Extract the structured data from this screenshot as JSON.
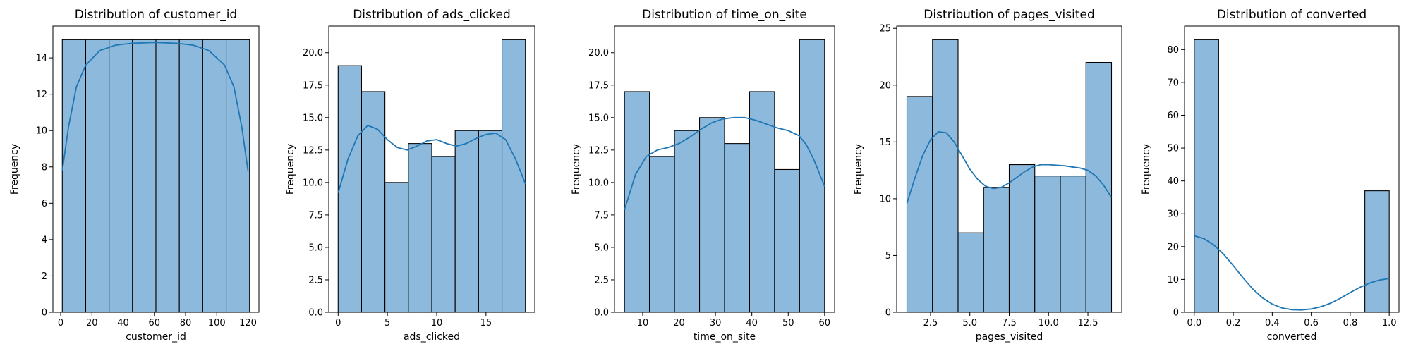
{
  "chart_data": [
    {
      "type": "bar",
      "title": "Distribution of customer_id",
      "xlabel": "customer_id",
      "ylabel": "Frequency",
      "bin_edges": [
        1,
        16,
        31,
        46,
        61,
        76,
        91,
        106,
        121
      ],
      "values": [
        15,
        15,
        15,
        15,
        15,
        15,
        15,
        15
      ],
      "xlim": [
        -5,
        127
      ],
      "ylim": [
        0,
        15.75
      ],
      "xticks": [
        0,
        20,
        40,
        60,
        80,
        100,
        120
      ],
      "xtick_labels": [
        "0",
        "20",
        "40",
        "60",
        "80",
        "100",
        "120"
      ],
      "yticks": [
        0,
        2,
        4,
        6,
        8,
        10,
        12,
        14
      ],
      "ytick_labels": [
        "0",
        "2",
        "4",
        "6",
        "8",
        "10",
        "12",
        "14"
      ],
      "kde": [
        [
          1,
          7.8
        ],
        [
          5,
          10.2
        ],
        [
          10,
          12.4
        ],
        [
          16,
          13.6
        ],
        [
          25,
          14.4
        ],
        [
          35,
          14.7
        ],
        [
          45,
          14.8
        ],
        [
          60,
          14.85
        ],
        [
          75,
          14.8
        ],
        [
          85,
          14.7
        ],
        [
          95,
          14.4
        ],
        [
          105,
          13.6
        ],
        [
          111,
          12.4
        ],
        [
          116,
          10.2
        ],
        [
          120,
          7.8
        ]
      ]
    },
    {
      "type": "bar",
      "title": "Distribution of ads_clicked",
      "xlabel": "ads_clicked",
      "ylabel": "Frequency",
      "bin_edges": [
        0,
        2.375,
        4.75,
        7.125,
        9.5,
        11.875,
        14.25,
        16.625,
        19
      ],
      "values": [
        19,
        17,
        10,
        13,
        12,
        14,
        14,
        21
      ],
      "xlim": [
        -0.95,
        19.95
      ],
      "ylim": [
        0,
        22.05
      ],
      "xticks": [
        0,
        5,
        10,
        15
      ],
      "xtick_labels": [
        "0",
        "5",
        "10",
        "15"
      ],
      "yticks": [
        0,
        2.5,
        5,
        7.5,
        10,
        12.5,
        15,
        17.5,
        20
      ],
      "ytick_labels": [
        "0.0",
        "2.5",
        "5.0",
        "7.5",
        "10.0",
        "12.5",
        "15.0",
        "17.5",
        "20.0"
      ],
      "kde": [
        [
          0,
          9.2
        ],
        [
          1,
          11.8
        ],
        [
          2,
          13.6
        ],
        [
          3,
          14.4
        ],
        [
          4,
          14.1
        ],
        [
          5,
          13.3
        ],
        [
          6,
          12.7
        ],
        [
          7,
          12.5
        ],
        [
          8,
          12.8
        ],
        [
          9,
          13.2
        ],
        [
          10,
          13.3
        ],
        [
          11,
          13.0
        ],
        [
          12,
          12.8
        ],
        [
          13,
          13.0
        ],
        [
          14,
          13.4
        ],
        [
          15,
          13.7
        ],
        [
          16,
          13.8
        ],
        [
          17,
          13.3
        ],
        [
          18,
          11.8
        ],
        [
          19,
          9.9
        ]
      ]
    },
    {
      "type": "bar",
      "title": "Distribution of time_on_site",
      "xlabel": "time_on_site",
      "ylabel": "Frequency",
      "bin_edges": [
        5,
        11.875,
        18.75,
        25.625,
        32.5,
        39.375,
        46.25,
        53.125,
        60
      ],
      "values": [
        17,
        12,
        14,
        15,
        13,
        17,
        11,
        21
      ],
      "xlim": [
        2.25,
        62.75
      ],
      "ylim": [
        0,
        22.05
      ],
      "xticks": [
        10,
        20,
        30,
        40,
        50,
        60
      ],
      "xtick_labels": [
        "10",
        "20",
        "30",
        "40",
        "50",
        "60"
      ],
      "yticks": [
        0,
        2.5,
        5,
        7.5,
        10,
        12.5,
        15,
        17.5,
        20
      ],
      "ytick_labels": [
        "0.0",
        "2.5",
        "5.0",
        "7.5",
        "10.0",
        "12.5",
        "15.0",
        "17.5",
        "20.0"
      ],
      "kde": [
        [
          5,
          7.9
        ],
        [
          8,
          10.6
        ],
        [
          11,
          12.0
        ],
        [
          14,
          12.5
        ],
        [
          17,
          12.7
        ],
        [
          20,
          13.0
        ],
        [
          23,
          13.5
        ],
        [
          26,
          14.1
        ],
        [
          29,
          14.6
        ],
        [
          32,
          14.9
        ],
        [
          35,
          15.0
        ],
        [
          38,
          15.0
        ],
        [
          41,
          14.8
        ],
        [
          44,
          14.5
        ],
        [
          47,
          14.2
        ],
        [
          50,
          14.0
        ],
        [
          53,
          13.6
        ],
        [
          55,
          12.9
        ],
        [
          57,
          11.8
        ],
        [
          60,
          9.7
        ]
      ]
    },
    {
      "type": "bar",
      "title": "Distribution of pages_visited",
      "xlabel": "pages_visited",
      "ylabel": "Frequency",
      "bin_edges": [
        1,
        2.625,
        4.25,
        5.875,
        7.5,
        9.125,
        10.75,
        12.375,
        14
      ],
      "values": [
        19,
        24,
        7,
        11,
        13,
        12,
        12,
        22
      ],
      "xlim": [
        0.35,
        14.65
      ],
      "ylim": [
        0,
        25.2
      ],
      "xticks": [
        2.5,
        5,
        7.5,
        10,
        12.5
      ],
      "xtick_labels": [
        "2.5",
        "5.0",
        "7.5",
        "10.0",
        "12.5"
      ],
      "yticks": [
        0,
        5,
        10,
        15,
        20,
        25
      ],
      "ytick_labels": [
        "0",
        "5",
        "10",
        "15",
        "20",
        "25"
      ],
      "kde": [
        [
          1,
          9.6
        ],
        [
          1.5,
          11.8
        ],
        [
          2,
          13.8
        ],
        [
          2.5,
          15.2
        ],
        [
          3,
          15.9
        ],
        [
          3.5,
          15.8
        ],
        [
          4,
          15.0
        ],
        [
          4.5,
          13.8
        ],
        [
          5,
          12.6
        ],
        [
          5.5,
          11.7
        ],
        [
          6,
          11.1
        ],
        [
          6.5,
          10.9
        ],
        [
          7,
          11.0
        ],
        [
          7.5,
          11.4
        ],
        [
          8,
          11.9
        ],
        [
          8.5,
          12.4
        ],
        [
          9,
          12.8
        ],
        [
          9.5,
          13.0
        ],
        [
          10,
          13.0
        ],
        [
          10.5,
          12.95
        ],
        [
          11,
          12.9
        ],
        [
          11.5,
          12.8
        ],
        [
          12,
          12.7
        ],
        [
          12.5,
          12.5
        ],
        [
          13,
          12.0
        ],
        [
          13.5,
          11.2
        ],
        [
          14,
          10.1
        ]
      ]
    },
    {
      "type": "bar",
      "title": "Distribution of converted",
      "xlabel": "converted",
      "ylabel": "Frequency",
      "bin_edges": [
        0,
        0.125,
        0.25,
        0.375,
        0.5,
        0.625,
        0.75,
        0.875,
        1
      ],
      "values": [
        83,
        0,
        0,
        0,
        0,
        0,
        0,
        37
      ],
      "xlim": [
        -0.05,
        1.05
      ],
      "ylim": [
        0,
        87.15
      ],
      "xticks": [
        0,
        0.2,
        0.4,
        0.6,
        0.8,
        1.0
      ],
      "xtick_labels": [
        "0.0",
        "0.2",
        "0.4",
        "0.6",
        "0.8",
        "1.0"
      ],
      "yticks": [
        0,
        10,
        20,
        30,
        40,
        50,
        60,
        70,
        80
      ],
      "ytick_labels": [
        "0",
        "10",
        "20",
        "30",
        "40",
        "50",
        "60",
        "70",
        "80"
      ],
      "kde": [
        [
          0,
          23.3
        ],
        [
          0.05,
          22.4
        ],
        [
          0.1,
          20.5
        ],
        [
          0.15,
          17.7
        ],
        [
          0.2,
          14.2
        ],
        [
          0.25,
          10.5
        ],
        [
          0.3,
          7.1
        ],
        [
          0.35,
          4.4
        ],
        [
          0.4,
          2.5
        ],
        [
          0.45,
          1.3
        ],
        [
          0.5,
          0.8
        ],
        [
          0.55,
          0.7
        ],
        [
          0.6,
          1.0
        ],
        [
          0.65,
          1.7
        ],
        [
          0.7,
          2.8
        ],
        [
          0.75,
          4.3
        ],
        [
          0.8,
          6.0
        ],
        [
          0.85,
          7.6
        ],
        [
          0.9,
          8.9
        ],
        [
          0.95,
          9.8
        ],
        [
          1.0,
          10.3
        ]
      ]
    }
  ]
}
